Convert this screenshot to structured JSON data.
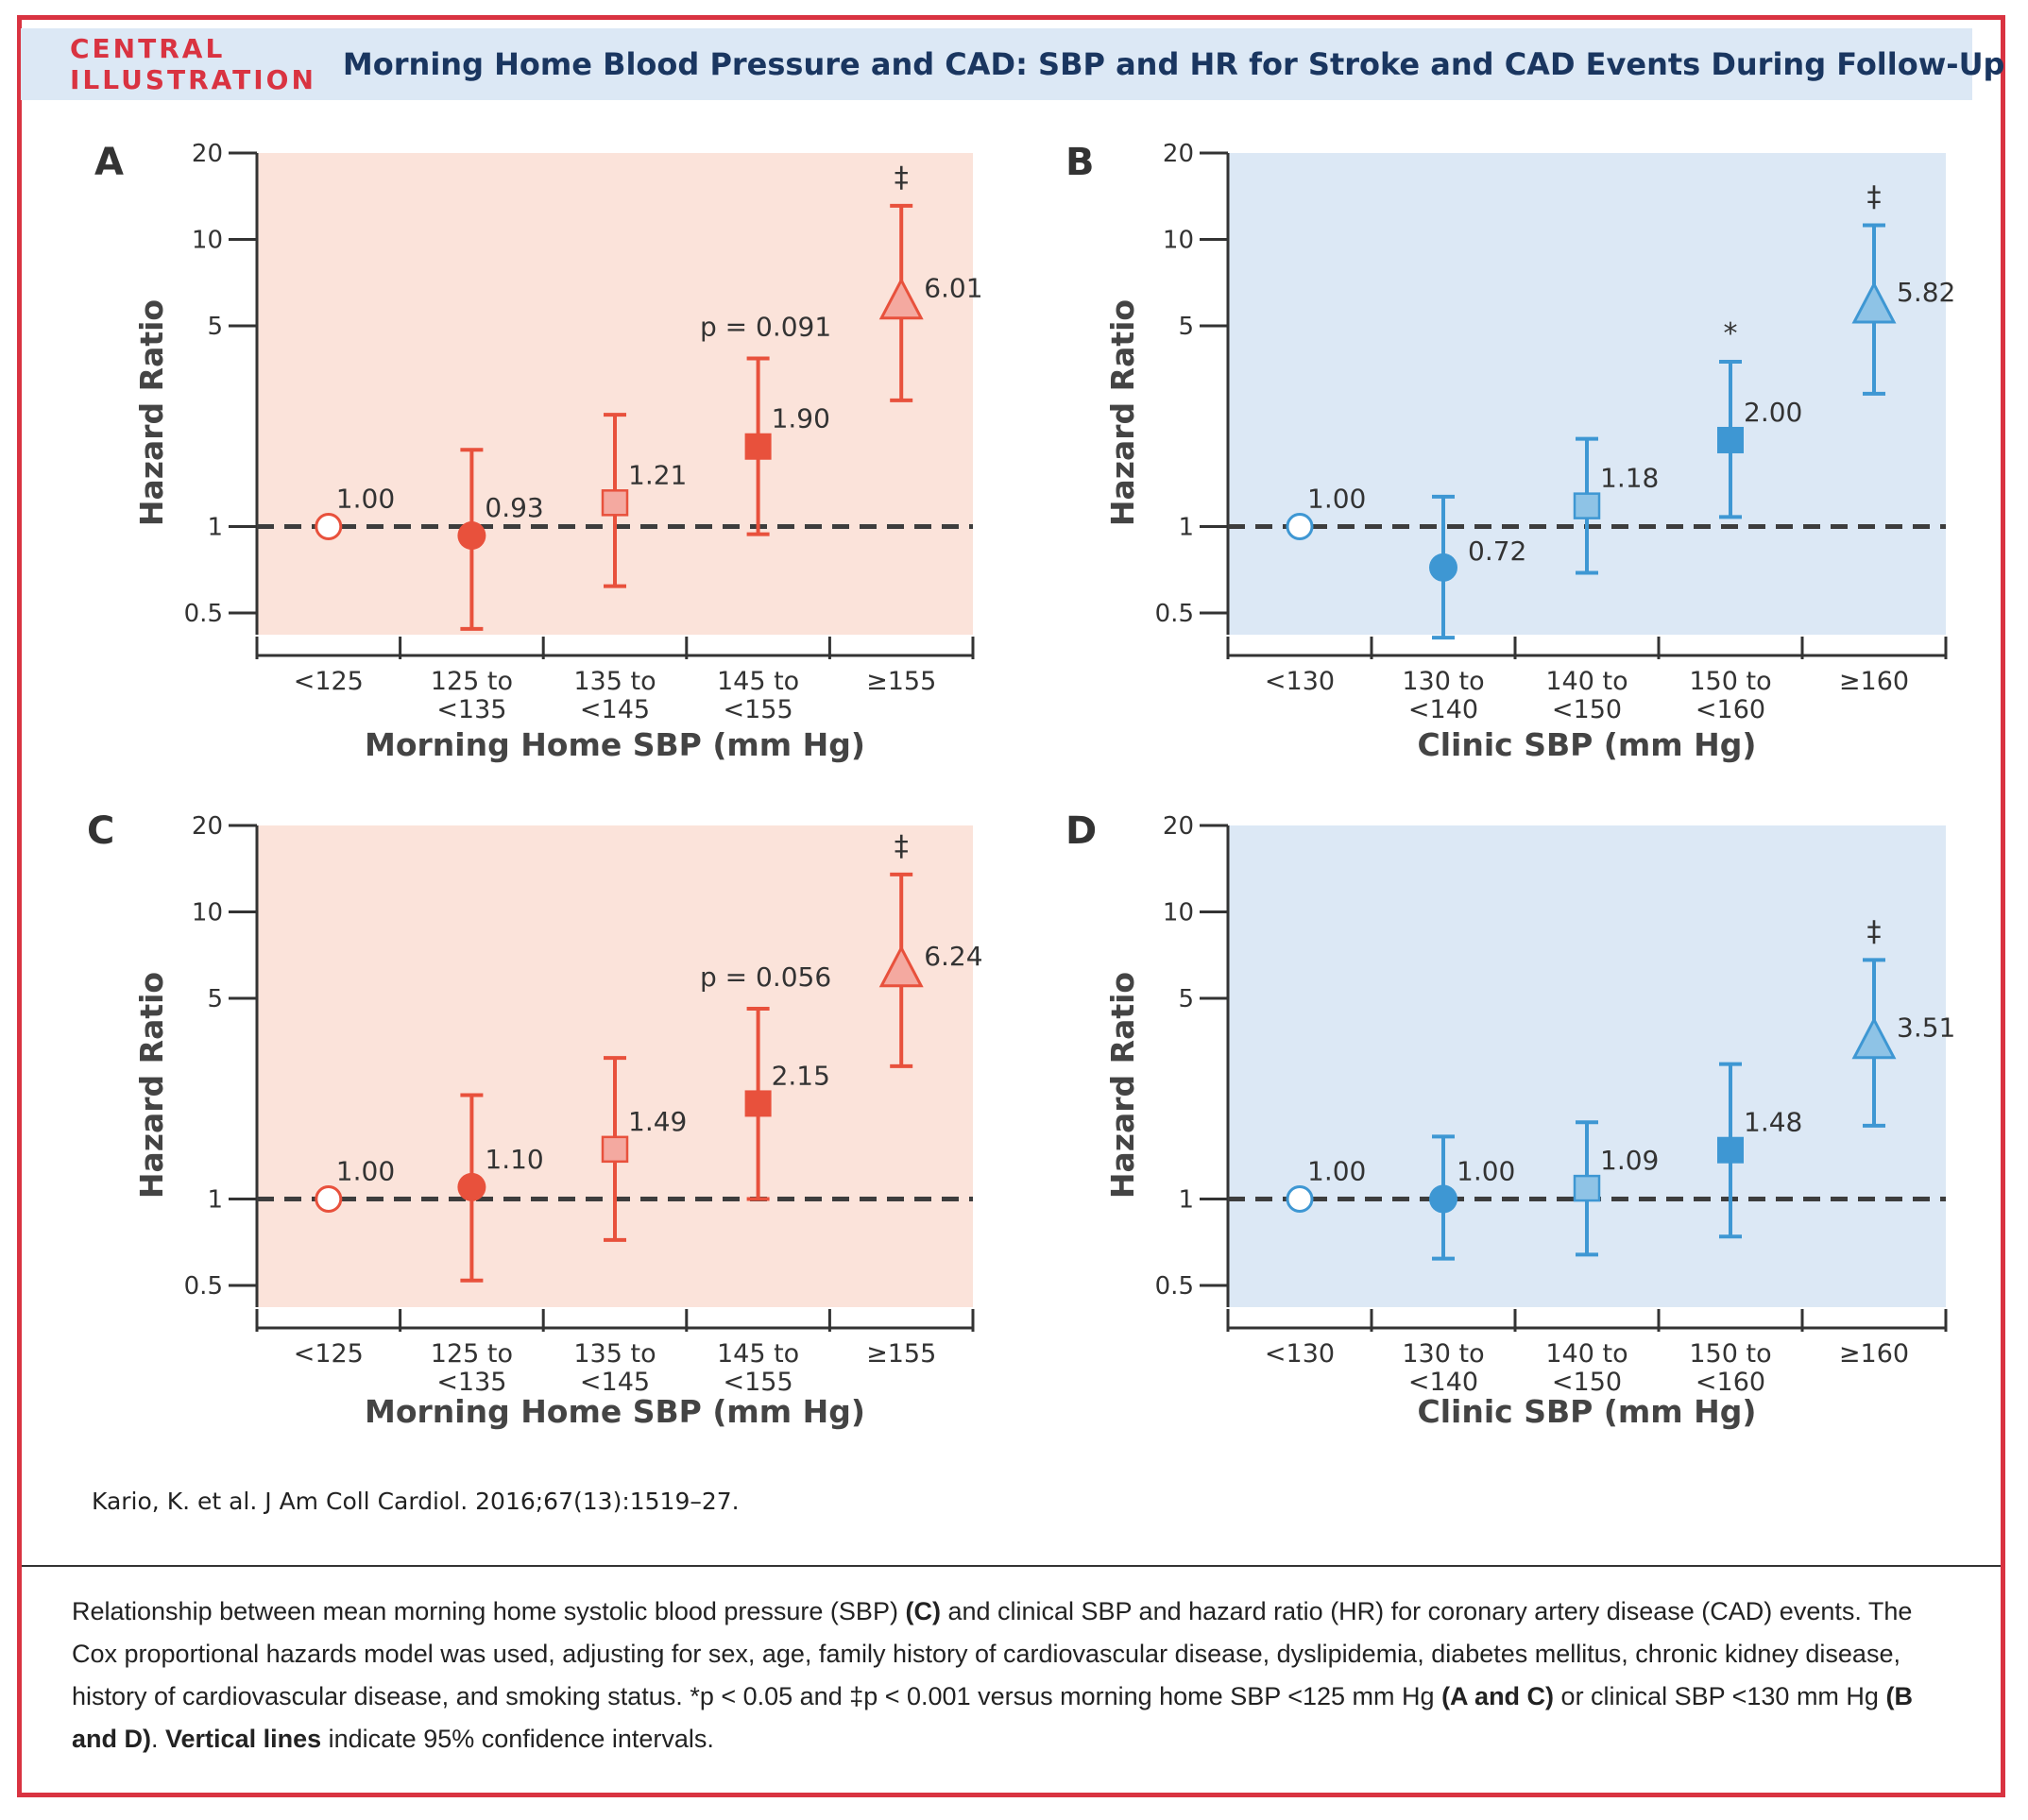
{
  "header": {
    "tag": "CENTRAL ILLUSTRATION",
    "title": "Morning Home Blood Pressure and CAD: SBP and HR for Stroke and CAD Events During Follow-Up"
  },
  "citation": "Kario, K. et al. J Am Coll Cardiol. 2016;67(13):1519–27.",
  "caption": {
    "p1": "Relationship between mean morning home systolic blood pressure (SBP) ",
    "b1": "(C)",
    "p2": " and clinical SBP and hazard ratio (HR) for coronary artery disease (CAD) events. The Cox proportional hazards model was used, adjusting for sex, age, family history of cardiovascular disease, dyslipidemia, diabetes mellitus, chronic kidney disease, history of cardiovascular disease, and smoking status. *p < 0.05 and ‡p < 0.001 versus morning home SBP <125 mm Hg ",
    "b2": "(A and C)",
    "p3": " or clinical SBP <130 mm Hg ",
    "b3": "(B and D)",
    "p4": ". ",
    "b4": "Vertical lines",
    "p5": " indicate 95% confidence intervals."
  },
  "colors": {
    "red": "#e8513c",
    "red_light": "#f4a9a0",
    "red_bg": "#fbe3da",
    "blue": "#3e97d3",
    "blue_light": "#8ec3e6",
    "blue_bg": "#dce8f5",
    "reference_line": "#3d3d3d"
  },
  "chart_data": [
    {
      "panel": "A",
      "type": "scatter",
      "scale": "log",
      "theme": "red",
      "xlabel": "Morning Home SBP (mm Hg)",
      "ylabel": "Hazard Ratio",
      "ylim": [
        0.42,
        20
      ],
      "yticks": [
        0.5,
        1,
        5,
        10,
        20
      ],
      "reference_line": 1,
      "categories": [
        [
          "<125"
        ],
        [
          "125 to",
          "<135"
        ],
        [
          "135 to",
          "<145"
        ],
        [
          "145 to",
          "<155"
        ],
        [
          "≥155"
        ]
      ],
      "points": [
        {
          "hr": 1.0,
          "label": "1.00",
          "marker": "open-circle"
        },
        {
          "hr": 0.93,
          "lo": 0.44,
          "hi": 1.85,
          "label": "0.93",
          "marker": "circle"
        },
        {
          "hr": 1.21,
          "lo": 0.62,
          "hi": 2.45,
          "label": "1.21",
          "marker": "square-light"
        },
        {
          "hr": 1.9,
          "lo": 0.94,
          "hi": 3.85,
          "label": "1.90",
          "marker": "square",
          "annotation": "p = 0.091"
        },
        {
          "hr": 6.01,
          "lo": 2.75,
          "hi": 13.1,
          "label": "6.01",
          "marker": "triangle",
          "annotation": "‡"
        }
      ]
    },
    {
      "panel": "B",
      "type": "scatter",
      "scale": "log",
      "theme": "blue",
      "xlabel": "Clinic SBP (mm Hg)",
      "ylabel": "Hazard Ratio",
      "ylim": [
        0.42,
        20
      ],
      "yticks": [
        0.5,
        1,
        5,
        10,
        20
      ],
      "reference_line": 1,
      "categories": [
        [
          "<130"
        ],
        [
          "130 to",
          "<140"
        ],
        [
          "140 to",
          "<150"
        ],
        [
          "150 to",
          "<160"
        ],
        [
          "≥160"
        ]
      ],
      "points": [
        {
          "hr": 1.0,
          "label": "1.00",
          "marker": "open-circle"
        },
        {
          "hr": 0.72,
          "lo": 0.41,
          "hi": 1.27,
          "label": "0.72",
          "marker": "circle"
        },
        {
          "hr": 1.18,
          "lo": 0.69,
          "hi": 2.02,
          "label": "1.18",
          "marker": "square-light"
        },
        {
          "hr": 2.0,
          "lo": 1.08,
          "hi": 3.75,
          "label": "2.00",
          "marker": "square",
          "annotation": "*"
        },
        {
          "hr": 5.82,
          "lo": 2.9,
          "hi": 11.2,
          "label": "5.82",
          "marker": "triangle",
          "annotation": "‡"
        }
      ]
    },
    {
      "panel": "C",
      "type": "scatter",
      "scale": "log",
      "theme": "red",
      "xlabel": "Morning Home SBP (mm Hg)",
      "ylabel": "Hazard Ratio",
      "ylim": [
        0.42,
        20
      ],
      "yticks": [
        0.5,
        1,
        5,
        10,
        20
      ],
      "reference_line": 1,
      "categories": [
        [
          "<125"
        ],
        [
          "125 to",
          "<135"
        ],
        [
          "135 to",
          "<145"
        ],
        [
          "145 to",
          "<155"
        ],
        [
          "≥155"
        ]
      ],
      "points": [
        {
          "hr": 1.0,
          "label": "1.00",
          "marker": "open-circle"
        },
        {
          "hr": 1.1,
          "lo": 0.52,
          "hi": 2.3,
          "label": "1.10",
          "marker": "circle"
        },
        {
          "hr": 1.49,
          "lo": 0.72,
          "hi": 3.1,
          "label": "1.49",
          "marker": "square-light"
        },
        {
          "hr": 2.15,
          "lo": 1.0,
          "hi": 4.6,
          "label": "2.15",
          "marker": "square",
          "annotation": "p = 0.056"
        },
        {
          "hr": 6.24,
          "lo": 2.9,
          "hi": 13.5,
          "label": "6.24",
          "marker": "triangle",
          "annotation": "‡"
        }
      ]
    },
    {
      "panel": "D",
      "type": "scatter",
      "scale": "log",
      "theme": "blue",
      "xlabel": "Clinic SBP (mm Hg)",
      "ylabel": "Hazard Ratio",
      "ylim": [
        0.42,
        20
      ],
      "yticks": [
        0.5,
        1,
        5,
        10,
        20
      ],
      "reference_line": 1,
      "categories": [
        [
          "<130"
        ],
        [
          "130 to",
          "<140"
        ],
        [
          "140 to",
          "<150"
        ],
        [
          "150 to",
          "<160"
        ],
        [
          "≥160"
        ]
      ],
      "points": [
        {
          "hr": 1.0,
          "label": "1.00",
          "marker": "open-circle"
        },
        {
          "hr": 1.0,
          "lo": 0.62,
          "hi": 1.65,
          "label": "1.00",
          "marker": "circle"
        },
        {
          "hr": 1.09,
          "lo": 0.64,
          "hi": 1.85,
          "label": "1.09",
          "marker": "square-light"
        },
        {
          "hr": 1.48,
          "lo": 0.74,
          "hi": 2.95,
          "label": "1.48",
          "marker": "square"
        },
        {
          "hr": 3.51,
          "lo": 1.8,
          "hi": 6.8,
          "label": "3.51",
          "marker": "triangle",
          "annotation": "‡"
        }
      ]
    }
  ]
}
